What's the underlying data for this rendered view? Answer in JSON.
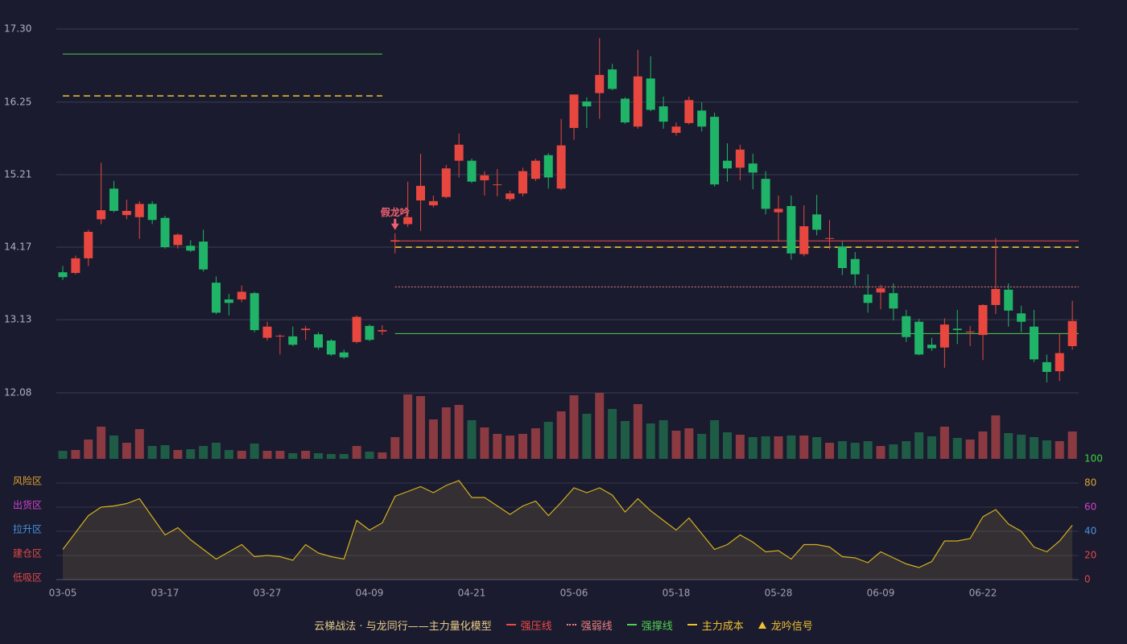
{
  "chart_data": [
    {
      "type": "candlestick",
      "categories": [
        "03-05",
        null,
        null,
        null,
        null,
        null,
        null,
        null,
        "03-17",
        null,
        null,
        null,
        null,
        null,
        null,
        null,
        "03-27",
        null,
        null,
        null,
        null,
        null,
        null,
        null,
        "04-09",
        null,
        null,
        null,
        null,
        null,
        null,
        null,
        "04-21",
        null,
        null,
        null,
        null,
        null,
        null,
        null,
        "05-06",
        null,
        null,
        null,
        null,
        null,
        null,
        null,
        "05-18",
        null,
        null,
        null,
        null,
        null,
        null,
        null,
        "05-28",
        null,
        null,
        null,
        null,
        null,
        null,
        null,
        "06-09",
        null,
        null,
        null,
        null,
        null,
        null,
        null,
        "06-22",
        null,
        null,
        null,
        null,
        null,
        null,
        null
      ],
      "open": [
        13.81,
        13.8,
        14.01,
        14.57,
        15.01,
        14.63,
        14.6,
        14.79,
        14.59,
        14.2,
        14.19,
        14.25,
        13.66,
        13.42,
        13.42,
        13.51,
        12.87,
        12.89,
        12.89,
        12.98,
        12.92,
        12.83,
        12.66,
        12.81,
        13.04,
        12.96,
        14.25,
        14.5,
        14.84,
        14.77,
        14.89,
        15.41,
        15.41,
        15.13,
        15.06,
        14.86,
        14.94,
        15.15,
        15.49,
        15.01,
        15.88,
        16.26,
        16.38,
        16.72,
        16.3,
        15.9,
        16.59,
        16.19,
        15.81,
        15.95,
        16.13,
        16.04,
        15.41,
        15.31,
        15.37,
        15.15,
        14.67,
        14.76,
        14.07,
        14.64,
        14.29,
        14.18,
        14.0,
        13.49,
        13.52,
        13.51,
        13.18,
        13.1,
        12.77,
        12.73,
        13.0,
        12.95,
        12.91,
        13.34,
        13.56,
        13.22,
        13.03,
        12.52,
        12.39,
        12.75
      ],
      "close": [
        13.74,
        14.01,
        14.39,
        14.7,
        14.69,
        14.69,
        14.79,
        14.56,
        14.17,
        14.35,
        14.12,
        13.85,
        13.23,
        13.37,
        13.53,
        12.98,
        13.03,
        12.9,
        12.77,
        13.0,
        12.73,
        12.63,
        12.59,
        13.17,
        12.84,
        12.98,
        14.27,
        14.6,
        15.05,
        14.83,
        15.3,
        15.64,
        15.11,
        15.2,
        15.07,
        14.94,
        15.26,
        15.41,
        15.17,
        15.63,
        16.36,
        16.19,
        16.64,
        16.44,
        15.96,
        16.62,
        16.14,
        15.97,
        15.9,
        16.28,
        15.9,
        15.07,
        15.3,
        15.57,
        15.24,
        14.72,
        14.72,
        14.08,
        14.47,
        14.42,
        14.3,
        13.87,
        13.78,
        13.37,
        13.58,
        13.29,
        12.88,
        12.63,
        12.72,
        13.06,
        12.98,
        12.96,
        13.34,
        13.57,
        13.26,
        13.1,
        12.56,
        12.38,
        12.65,
        13.11
      ],
      "high": [
        13.9,
        14.05,
        14.42,
        15.38,
        15.12,
        14.85,
        14.83,
        14.83,
        14.62,
        14.37,
        14.27,
        14.42,
        13.75,
        13.5,
        13.62,
        13.53,
        13.1,
        12.92,
        13.03,
        13.04,
        12.95,
        12.85,
        12.7,
        13.19,
        13.06,
        13.05,
        14.37,
        15.11,
        15.51,
        14.91,
        15.35,
        15.8,
        15.44,
        15.26,
        15.29,
        14.98,
        15.31,
        15.44,
        15.52,
        16.01,
        16.36,
        16.32,
        17.17,
        16.8,
        16.32,
        17.0,
        16.91,
        16.33,
        15.96,
        16.33,
        16.25,
        16.1,
        15.66,
        15.64,
        15.51,
        15.26,
        14.91,
        14.91,
        14.77,
        14.92,
        14.56,
        14.25,
        14.1,
        13.78,
        13.63,
        13.65,
        13.27,
        13.14,
        12.87,
        13.15,
        13.27,
        13.04,
        13.35,
        14.3,
        13.65,
        13.33,
        13.27,
        12.63,
        12.93,
        13.4
      ],
      "low": [
        13.7,
        13.78,
        13.9,
        14.5,
        14.67,
        14.57,
        14.29,
        14.5,
        14.15,
        14.15,
        14.1,
        13.82,
        13.21,
        13.19,
        13.38,
        12.95,
        12.83,
        12.63,
        12.75,
        12.84,
        12.7,
        12.61,
        12.57,
        12.79,
        12.82,
        12.91,
        14.08,
        14.46,
        14.4,
        14.74,
        14.87,
        15.17,
        15.09,
        14.91,
        14.9,
        14.83,
        14.9,
        15.12,
        15.01,
        14.99,
        15.71,
        15.88,
        16.01,
        16.42,
        15.94,
        15.87,
        16.12,
        15.87,
        15.77,
        15.93,
        15.83,
        15.04,
        15.11,
        15.13,
        15.0,
        14.64,
        14.25,
        13.99,
        14.04,
        14.34,
        14.14,
        13.77,
        13.62,
        13.23,
        13.28,
        13.12,
        12.81,
        12.62,
        12.68,
        12.44,
        12.78,
        12.75,
        12.55,
        13.21,
        13.03,
        12.95,
        12.52,
        12.23,
        12.25,
        12.7
      ],
      "volume": [
        10,
        11,
        24,
        40,
        29,
        20,
        37,
        16,
        17,
        11,
        12,
        16,
        20,
        11,
        10,
        19,
        10,
        10,
        7,
        10,
        7,
        6,
        6,
        16,
        9,
        8,
        27,
        80,
        78,
        49,
        64,
        67,
        48,
        39,
        31,
        29,
        31,
        38,
        46,
        59,
        79,
        56,
        82,
        62,
        47,
        68,
        44,
        48,
        35,
        38,
        31,
        48,
        33,
        30,
        27,
        28,
        28,
        29,
        29,
        27,
        20,
        22,
        20,
        22,
        16,
        18,
        22,
        33,
        28,
        40,
        26,
        24,
        34,
        54,
        32,
        30,
        27,
        23,
        22,
        34
      ],
      "ylim": [
        12.08,
        17.3
      ],
      "yticks": [
        {
          "value": 17.3,
          "label": "17.30"
        },
        16.25,
        15.21,
        14.17,
        13.13,
        12.08
      ],
      "grid": true,
      "up_color": "#e8473f",
      "down_color": "#20b468",
      "levels": [
        {
          "value": 16.94,
          "from": 0,
          "to": 25,
          "legend": 2
        },
        {
          "value": 16.34,
          "from": 0,
          "to": 25,
          "legend": 3
        },
        {
          "value": 14.26,
          "from": 26,
          "to": 79,
          "legend": 0
        },
        {
          "value": 14.17,
          "from": 26,
          "to": 79,
          "legend": 3
        },
        {
          "value": 13.6,
          "from": 26,
          "to": 79,
          "legend": 1
        },
        {
          "value": 12.93,
          "from": 26,
          "to": 79,
          "legend": 2
        }
      ],
      "signals": [
        {
          "at": 26,
          "label": "假龙吟"
        }
      ],
      "legend_title": "云梯战法 · 与龙同行——主力量化模型",
      "legend": [
        {
          "label": "强压线",
          "color": "#f04848",
          "style": "solid"
        },
        {
          "label": "强弱线",
          "color": "#f08080",
          "style": "dotted"
        },
        {
          "label": "强撑线",
          "color": "#50d050",
          "style": "solid"
        },
        {
          "label": "主力成本",
          "color": "#f0c030",
          "style": "dashed"
        },
        {
          "label": "龙吟信号",
          "color": "#f0c030",
          "style": "triangle"
        }
      ]
    },
    {
      "type": "area",
      "values": [
        25,
        39,
        53,
        60,
        61,
        63,
        67,
        52,
        37,
        43,
        33,
        25,
        17,
        23,
        29,
        19,
        20,
        19,
        16,
        29,
        22,
        19,
        17,
        49,
        41,
        47,
        69,
        73,
        77,
        72,
        78,
        82,
        68,
        68,
        61,
        54,
        61,
        65,
        53,
        64,
        76,
        72,
        76,
        70,
        56,
        67,
        57,
        49,
        41,
        51,
        38,
        25,
        29,
        37,
        31,
        23,
        24,
        17,
        29,
        29,
        27,
        19,
        18,
        14,
        23,
        18,
        13,
        10,
        15,
        32,
        32,
        34,
        52,
        58,
        46,
        40,
        27,
        23,
        32,
        45
      ],
      "ylim": [
        0,
        100
      ],
      "yticks": [
        0,
        20,
        40,
        60,
        80,
        100
      ],
      "tick_colors": [
        "#e04848",
        "#e04848",
        "#4a90e0",
        "#d040d0",
        "#e0a030",
        "#40d040"
      ],
      "zones": [
        {
          "value": 80,
          "label": "风险区",
          "color": "#e0a030"
        },
        {
          "value": 60,
          "label": "出货区",
          "color": "#d040d0"
        },
        {
          "value": 40,
          "label": "拉升区",
          "color": "#4a90e0"
        },
        {
          "value": 20,
          "label": "建仓区",
          "color": "#e04848"
        },
        {
          "value": 0,
          "label": "低吸区",
          "color": "#e04848"
        }
      ],
      "color": "#d4b020"
    }
  ]
}
